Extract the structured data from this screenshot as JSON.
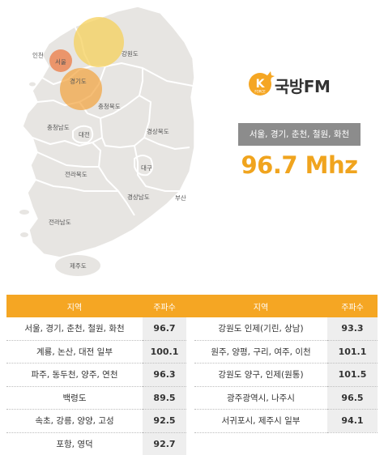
{
  "map": {
    "regions": {
      "incheon": "인천",
      "seoul": "서울",
      "gyeonggi": "경기도",
      "gangwon": "강원도",
      "chungbuk": "충청북도",
      "chungnam": "충청남도",
      "daejeon": "대전",
      "gyeongbuk": "경상북도",
      "daegu": "대구",
      "jeonbuk": "전라북도",
      "gyeongnam": "경상남도",
      "busan": "부산",
      "jeonnam": "전라남도",
      "jeju": "제주도"
    },
    "colors": {
      "land": "#e7e5e2",
      "border": "#ffffff",
      "coverage_yellow": "#f6d05b",
      "coverage_orange": "#f2a33c",
      "coverage_red": "#ec7a43"
    }
  },
  "logo": {
    "mark_letter": "K",
    "mark_sub": "FORCE",
    "text": "국방FM",
    "mark_color": "#f5a623"
  },
  "coverage": {
    "areas": "서울, 경기, 춘천, 철원, 화천",
    "frequency": "96.7 Mhz"
  },
  "table": {
    "headers": {
      "region1": "지역",
      "freq1": "주파수",
      "region2": "지역",
      "freq2": "주파수"
    },
    "rows": [
      {
        "region1": "서울, 경기, 춘천, 철원, 화천",
        "freq1": "96.7",
        "region2": "강원도 인제(기린, 상남)",
        "freq2": "93.3"
      },
      {
        "region1": "계룡, 논산, 대전 일부",
        "freq1": "100.1",
        "region2": "원주, 양평, 구리, 여주, 이천",
        "freq2": "101.1"
      },
      {
        "region1": "파주, 동두천, 양주, 연천",
        "freq1": "96.3",
        "region2": "강원도 양구, 인제(원통)",
        "freq2": "101.5"
      },
      {
        "region1": "백령도",
        "freq1": "89.5",
        "region2": "광주광역시, 나주시",
        "freq2": "96.5"
      },
      {
        "region1": "속초, 강릉, 양양, 고성",
        "freq1": "92.5",
        "region2": "서귀포시, 제주시 일부",
        "freq2": "94.1"
      },
      {
        "region1": "포항, 영덕",
        "freq1": "92.7",
        "region2": "",
        "freq2": ""
      }
    ]
  },
  "accent_color": "#f5a623",
  "frequency_color": "#f0a41e"
}
